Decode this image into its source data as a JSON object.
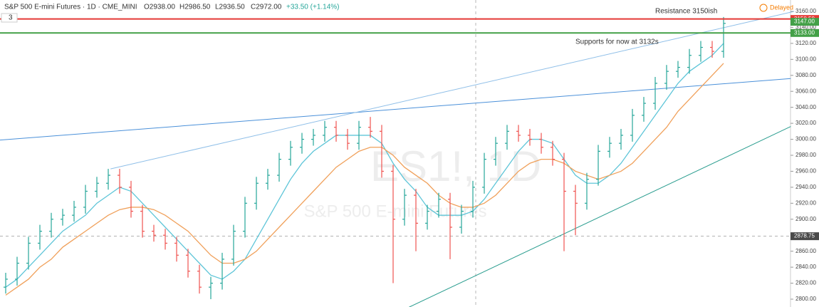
{
  "chart_data": {
    "type": "ohlc",
    "header": {
      "symbol": "S&P 500 E-mini Futures · 1D · CME_MINI",
      "open": "O2938.00",
      "high": "H2986.50",
      "low": "L2936.50",
      "close": "C2972.00",
      "change": "+33.50 (+1.14%)",
      "status": "Delayed",
      "collapse": "3"
    },
    "watermark": {
      "title": "ES1!, 1D",
      "subtitle": "S&P 500 E-mini Futures"
    },
    "annotations": [
      {
        "text": "Resistance 3150ish",
        "at": [
          57,
          3160
        ]
      },
      {
        "text": "Supports for now at 3132s",
        "at": [
          50,
          3122
        ]
      }
    ],
    "up_color": "#26a69a",
    "down_color": "#ef5350",
    "open": [
      2815,
      2825,
      2845,
      2870,
      2885,
      2900,
      2905,
      2915,
      2935,
      2945,
      2955,
      2940,
      2910,
      2885,
      2880,
      2870,
      2855,
      2835,
      2815,
      2820,
      2850,
      2885,
      2920,
      2945,
      2955,
      2975,
      2990,
      3000,
      3005,
      3015,
      3005,
      2995,
      3015,
      3010,
      2960,
      2900,
      2930,
      2895,
      2910,
      2925,
      2890,
      2910,
      2940,
      2975,
      2995,
      3010,
      3005,
      3000,
      2990,
      2975,
      2935,
      2920,
      2950,
      2985,
      2995,
      3005,
      3030,
      3045,
      3070,
      3085,
      3090,
      3105,
      3115,
      3110
    ],
    "high": [
      2833,
      2853,
      2878,
      2893,
      2908,
      2913,
      2923,
      2943,
      2953,
      2963,
      2963,
      2948,
      2918,
      2893,
      2888,
      2878,
      2863,
      2843,
      2828,
      2858,
      2893,
      2928,
      2953,
      2963,
      2983,
      2998,
      3008,
      3013,
      3023,
      3023,
      3013,
      3023,
      3028,
      3018,
      2968,
      2938,
      2938,
      2918,
      2933,
      2933,
      2918,
      2948,
      2983,
      3003,
      3018,
      3018,
      3013,
      3008,
      2998,
      2983,
      2943,
      2958,
      2993,
      3003,
      3013,
      3038,
      3053,
      3078,
      3093,
      3098,
      3113,
      3123,
      3123,
      3153
    ],
    "low": [
      2807,
      2817,
      2837,
      2862,
      2877,
      2892,
      2897,
      2907,
      2927,
      2937,
      2932,
      2902,
      2877,
      2872,
      2862,
      2847,
      2827,
      2807,
      2800,
      2812,
      2842,
      2877,
      2912,
      2937,
      2947,
      2967,
      2982,
      2992,
      2997,
      2997,
      2987,
      2987,
      3002,
      2952,
      2820,
      2892,
      2860,
      2887,
      2902,
      2850,
      2882,
      2902,
      2932,
      2967,
      2987,
      2997,
      2992,
      2982,
      2967,
      2860,
      2880,
      2912,
      2942,
      2977,
      2987,
      2997,
      3022,
      3037,
      3062,
      3077,
      3082,
      3097,
      3102,
      3102
    ],
    "close": [
      2825,
      2845,
      2870,
      2885,
      2900,
      2905,
      2915,
      2935,
      2945,
      2955,
      2940,
      2910,
      2885,
      2880,
      2870,
      2855,
      2835,
      2815,
      2820,
      2850,
      2885,
      2920,
      2945,
      2955,
      2975,
      2990,
      3000,
      3005,
      3015,
      3005,
      2995,
      3015,
      3010,
      2960,
      2900,
      2930,
      2895,
      2910,
      2925,
      2890,
      2910,
      2940,
      2975,
      2995,
      3010,
      3005,
      3000,
      2990,
      2975,
      2935,
      2920,
      2950,
      2985,
      2995,
      3005,
      3030,
      3045,
      3070,
      3085,
      3090,
      3105,
      3115,
      3110,
      3145
    ],
    "overlays": [
      {
        "color": "#5ec5d8",
        "values": [
          2815,
          2825,
          2840,
          2855,
          2870,
          2885,
          2895,
          2905,
          2920,
          2930,
          2940,
          2935,
          2920,
          2905,
          2890,
          2875,
          2860,
          2845,
          2830,
          2825,
          2835,
          2850,
          2875,
          2900,
          2925,
          2950,
          2970,
          2985,
          2995,
          3005,
          3005,
          3005,
          3005,
          2995,
          2970,
          2950,
          2935,
          2915,
          2905,
          2905,
          2905,
          2910,
          2925,
          2945,
          2965,
          2985,
          3000,
          3000,
          2995,
          2975,
          2955,
          2945,
          2945,
          2955,
          2970,
          2990,
          3010,
          3030,
          3050,
          3070,
          3085,
          3095,
          3105,
          3120
        ]
      },
      {
        "color": "#f0a05a",
        "values": [
          2805,
          2815,
          2825,
          2840,
          2850,
          2865,
          2875,
          2885,
          2895,
          2905,
          2912,
          2915,
          2915,
          2912,
          2905,
          2895,
          2885,
          2870,
          2855,
          2845,
          2845,
          2850,
          2860,
          2875,
          2890,
          2905,
          2920,
          2935,
          2950,
          2965,
          2975,
          2985,
          2990,
          2990,
          2980,
          2965,
          2955,
          2945,
          2930,
          2920,
          2915,
          2915,
          2920,
          2930,
          2945,
          2960,
          2970,
          2975,
          2975,
          2970,
          2960,
          2955,
          2950,
          2955,
          2960,
          2970,
          2985,
          3000,
          3015,
          3035,
          3050,
          3065,
          3080,
          3095
        ]
      }
    ],
    "trendlines": [
      {
        "color": "#4a90d9",
        "from": [
          -0.5,
          2999
        ],
        "to": [
          68.9,
          3076
        ]
      },
      {
        "color": "#8fbfe8",
        "from": [
          9.2,
          2963
        ],
        "to": [
          69.2,
          3160
        ]
      },
      {
        "color": "#2a9d8f",
        "from": [
          35.4,
          2790
        ],
        "to": [
          68.9,
          3016
        ]
      }
    ],
    "levels": [
      {
        "value": 3150.5,
        "label": "3150.50",
        "color": "#e53935",
        "line": true
      },
      {
        "value": 3147,
        "label": "3147.00",
        "color": "#43a047",
        "line": false
      },
      {
        "value": 3133,
        "label": "3133.00",
        "color": "#43a047",
        "line": true
      },
      {
        "value": 2878.75,
        "label": "2878.75",
        "color": "#4a4a4a",
        "line": false
      }
    ],
    "crosshair": {
      "x": 41.25,
      "y": 2878.75
    },
    "ylim": [
      2800,
      3160
    ],
    "yticks": [
      {
        "value": 2800,
        "label": "2800.00"
      },
      {
        "value": 2820,
        "label": "2820.00"
      },
      {
        "value": 2840,
        "label": "2840.00"
      },
      {
        "value": 2860,
        "label": "2860.00"
      },
      {
        "value": 2880,
        "label": "2880.00"
      },
      {
        "value": 2900,
        "label": "2900.00"
      },
      {
        "value": 2920,
        "label": "2920.00"
      },
      {
        "value": 2940,
        "label": "2940.00"
      },
      {
        "value": 2960,
        "label": "2960.00"
      },
      {
        "value": 2980,
        "label": "2980.00"
      },
      {
        "value": 3000,
        "label": "3000.00"
      },
      {
        "value": 3020,
        "label": "3020.00"
      },
      {
        "value": 3040,
        "label": "3040.00"
      },
      {
        "value": 3060,
        "label": "3060.00"
      },
      {
        "value": 3080,
        "label": "3080.00"
      },
      {
        "value": 3100,
        "label": "3100.00"
      },
      {
        "value": 3120,
        "label": "3120.00"
      },
      {
        "value": 3140,
        "label": "3140.00"
      },
      {
        "value": 3160,
        "label": "3160.00"
      }
    ]
  }
}
